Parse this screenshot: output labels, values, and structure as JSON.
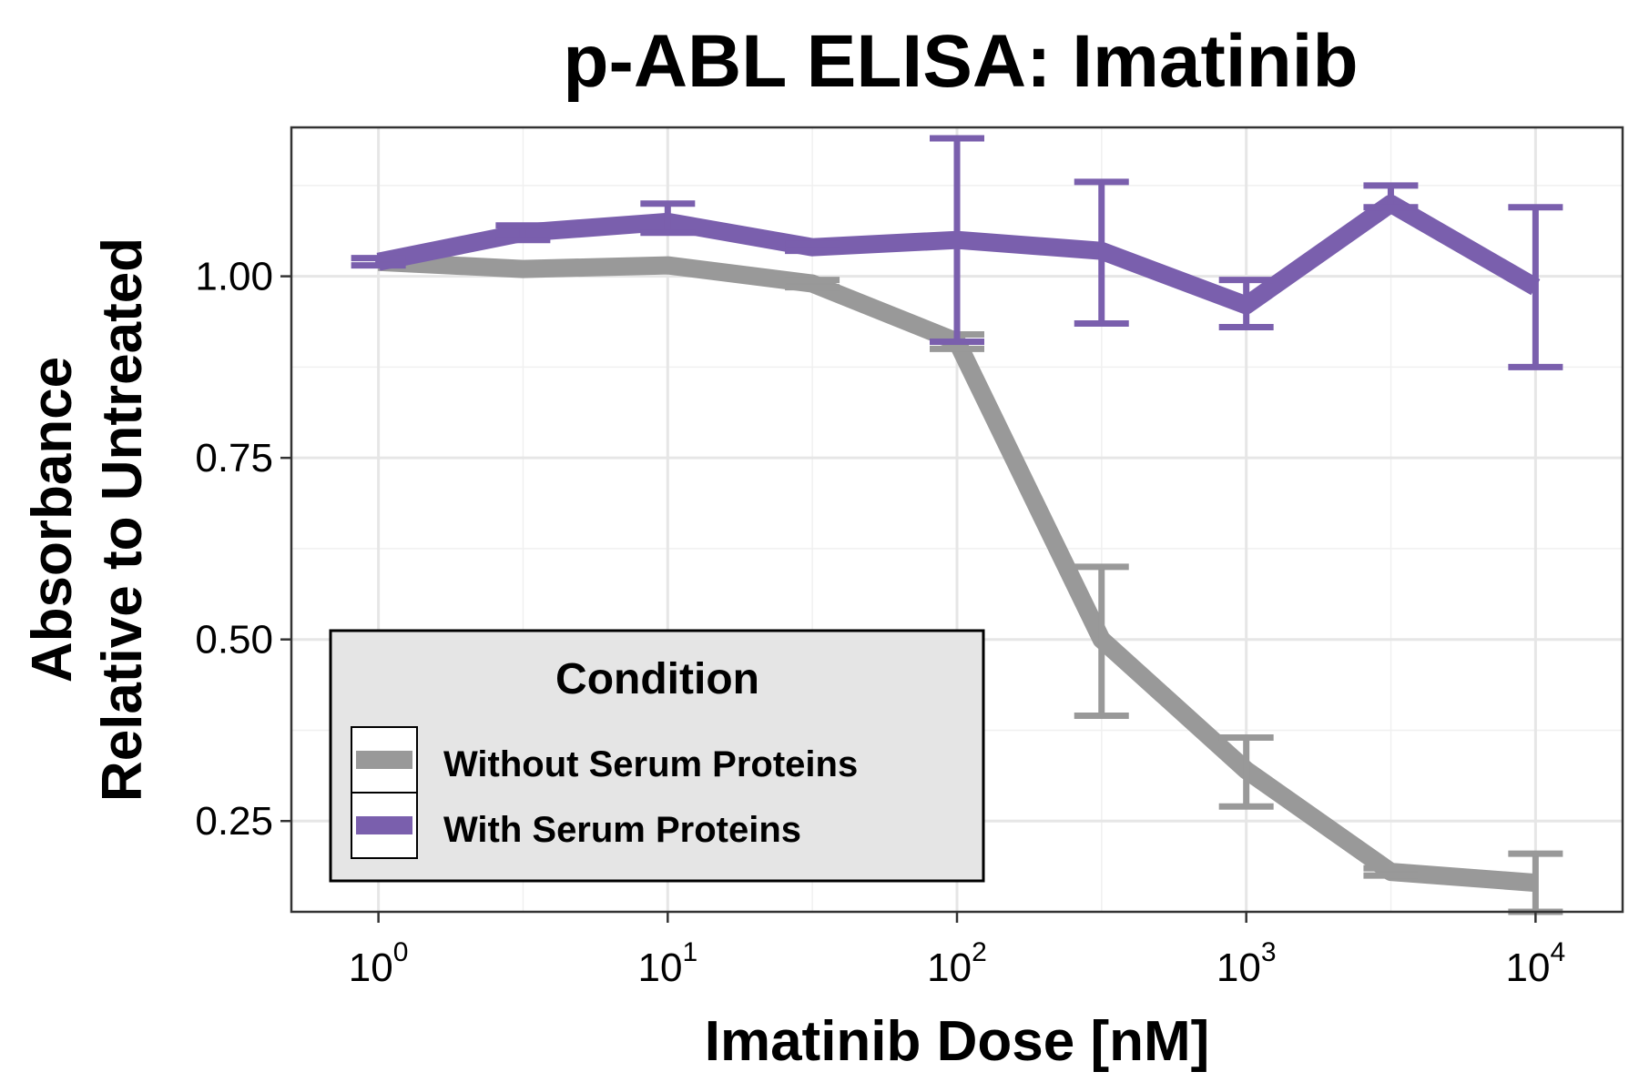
{
  "chart_data": {
    "type": "line",
    "title": "p-ABL ELISA: Imatinib",
    "xlabel": "Imatinib Dose [nM]",
    "ylabel_lines": [
      "Absorbance",
      "Relative to Untreated"
    ],
    "x_scale": "log10",
    "xlim": [
      0.5,
      20000
    ],
    "ylim": [
      0.125,
      1.205
    ],
    "x_ticks": [
      {
        "value": 1,
        "base": "10",
        "exp": "0"
      },
      {
        "value": 10,
        "base": "10",
        "exp": "1"
      },
      {
        "value": 100,
        "base": "10",
        "exp": "2"
      },
      {
        "value": 1000,
        "base": "10",
        "exp": "3"
      },
      {
        "value": 10000,
        "base": "10",
        "exp": "4"
      }
    ],
    "y_ticks": [
      "0.25",
      "0.50",
      "0.75",
      "1.00"
    ],
    "grid": true,
    "legend": {
      "title": "Condition",
      "position": "bottom-left, inside plot"
    },
    "series": [
      {
        "name": "Without Serum Proteins",
        "color": "#999999",
        "x": [
          1,
          3.16,
          10,
          31.6,
          100,
          316,
          1000,
          3160,
          10000
        ],
        "y": [
          1.02,
          1.01,
          1.015,
          0.99,
          0.91,
          0.5,
          0.32,
          0.18,
          0.165
        ],
        "err_low": [
          null,
          null,
          null,
          0.985,
          0.9,
          0.395,
          0.27,
          0.175,
          0.125
        ],
        "err_high": [
          null,
          null,
          null,
          0.995,
          0.92,
          0.6,
          0.365,
          0.185,
          0.205
        ]
      },
      {
        "name": "With Serum Proteins",
        "color": "#7a5fad",
        "x": [
          1,
          3.16,
          10,
          31.6,
          100,
          316,
          1000,
          3160,
          10000
        ],
        "y": [
          1.02,
          1.06,
          1.075,
          1.04,
          1.05,
          1.035,
          0.96,
          1.1,
          0.985
        ],
        "err_low": [
          1.015,
          1.05,
          1.06,
          1.035,
          0.91,
          0.935,
          0.93,
          1.095,
          0.875
        ],
        "err_high": [
          1.025,
          1.07,
          1.1,
          1.045,
          1.19,
          1.13,
          0.995,
          1.125,
          1.095
        ]
      }
    ]
  }
}
